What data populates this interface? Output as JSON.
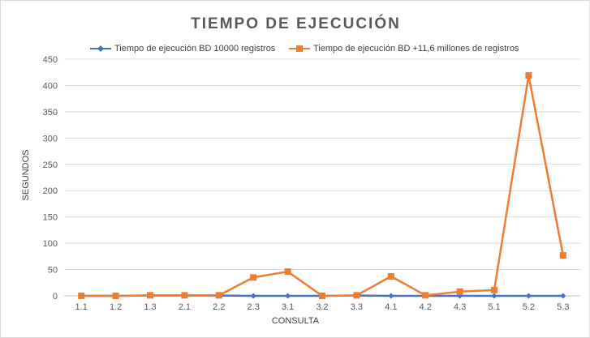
{
  "chart_data": {
    "type": "line",
    "title": "TIEMPO  DE EJECUCIÓN",
    "xlabel": "CONSULTA",
    "ylabel": "SEGUNDOS",
    "categories": [
      "1.1",
      "1.2",
      "1.3",
      "2.1",
      "2.2",
      "2.3",
      "3.1",
      "3.2",
      "3.3",
      "4.1",
      "4.2",
      "4.3",
      "5.1",
      "5.2",
      "5.3"
    ],
    "ylim": [
      0,
      450
    ],
    "yticks": [
      0,
      50,
      100,
      150,
      200,
      250,
      300,
      350,
      400,
      450
    ],
    "grid": true,
    "legend_position": "top",
    "series": [
      {
        "name": "Tiempo de ejecución BD 10000 registros",
        "color": "#4472c4",
        "marker": "diamond",
        "values": [
          0,
          0,
          0.5,
          0.5,
          0.5,
          0,
          0,
          0,
          0.5,
          0,
          0,
          0,
          0,
          0,
          0
        ]
      },
      {
        "name": "Tiempo de ejecución BD +11,6 millones de registros",
        "color": "#ed7d31",
        "marker": "square",
        "values": [
          0,
          0,
          1,
          1,
          1,
          35,
          46,
          0,
          1,
          37,
          1,
          8,
          11,
          419,
          77
        ]
      }
    ]
  }
}
